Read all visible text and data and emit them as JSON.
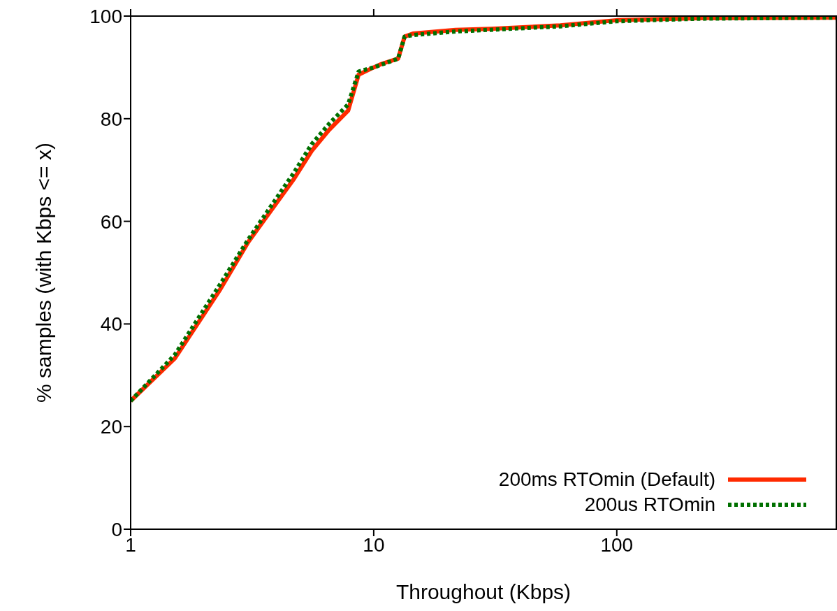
{
  "chart_data": {
    "type": "line",
    "xlabel": "Throughout (Kbps)",
    "ylabel": "% samples (with Kbps <= x)",
    "log": "x",
    "xlim": [
      1,
      800
    ],
    "xticks": [
      1,
      10,
      100
    ],
    "ylim": [
      0,
      100
    ],
    "yticks": [
      0,
      20,
      40,
      60,
      80,
      100
    ],
    "grid": false,
    "legend": "bottom right",
    "marker": "none",
    "series": [
      {
        "name": "200ms RTOmin (Default)",
        "color": "#ff2a00",
        "line_style": "solid",
        "x": [
          1,
          1.52,
          2.34,
          3.05,
          4.7,
          5.55,
          6.55,
          7.85,
          8.67,
          10,
          10.8,
          12.6,
          13.4,
          14.5,
          21.7,
          30.2,
          58.6,
          100,
          220,
          800
        ],
        "values": [
          25,
          33.3,
          46.8,
          56,
          68.3,
          73.7,
          77.8,
          81.6,
          88.6,
          90,
          90.7,
          91.7,
          96,
          96.6,
          97.3,
          97.5,
          98.2,
          99.2,
          99.6,
          99.7
        ]
      },
      {
        "name": "200us RTOmin",
        "color": "#007000",
        "line_style": "dotted",
        "x": [
          1,
          1.52,
          2.34,
          3.05,
          4.7,
          5.55,
          6.55,
          7.85,
          8.67,
          10,
          12.6,
          13.4,
          14.5,
          21.7,
          58.6,
          100,
          220,
          800
        ],
        "values": [
          25,
          34,
          47.8,
          56.5,
          69.5,
          75,
          79,
          82.8,
          89.2,
          90,
          91.7,
          96,
          96.3,
          97,
          98,
          99,
          99.5,
          99.7
        ]
      }
    ]
  }
}
